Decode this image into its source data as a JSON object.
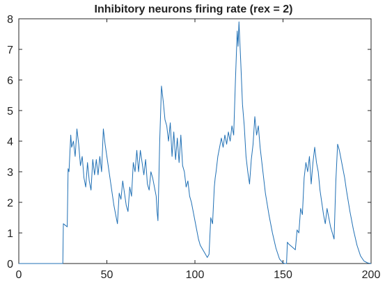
{
  "chart_data": {
    "type": "line",
    "title": "Inhibitory neurons firing rate (rex = 2)",
    "xlabel": "",
    "ylabel": "",
    "xlim": [
      0,
      200
    ],
    "ylim": [
      0,
      8
    ],
    "xticks": [
      0,
      50,
      100,
      150,
      200
    ],
    "yticks": [
      0,
      1,
      2,
      3,
      4,
      5,
      6,
      7,
      8
    ],
    "grid": false,
    "legend": "none",
    "series": [
      {
        "color": "#1f6fb4",
        "x": [
          0,
          25,
          25.3,
          27.5,
          28,
          28.5,
          29.5,
          30,
          31,
          32,
          33,
          34,
          35,
          36,
          37,
          38,
          39,
          40,
          41,
          42,
          43,
          44,
          45,
          46,
          47,
          48,
          49,
          50,
          51,
          52,
          53,
          54,
          55,
          56,
          57,
          58,
          59,
          60,
          61,
          62,
          63,
          64,
          65,
          66,
          67,
          68,
          69,
          70,
          71,
          72,
          73,
          74,
          75,
          76,
          77,
          78,
          78.5,
          79,
          80,
          81,
          82,
          83,
          84,
          85,
          86,
          87,
          88,
          89,
          90,
          91,
          92,
          93,
          94,
          95,
          96,
          97,
          98,
          99,
          100,
          101,
          102,
          103,
          104,
          105,
          106,
          107,
          108,
          109,
          110,
          111,
          111.5,
          112,
          113,
          114,
          115,
          116,
          117,
          118,
          119,
          120,
          121,
          122,
          123,
          124,
          124.5,
          125,
          126,
          127,
          128,
          129,
          130,
          131,
          132,
          133,
          134,
          135,
          136,
          137,
          138,
          139,
          140,
          142,
          144,
          146,
          148,
          150,
          151,
          152,
          152.5,
          153,
          154,
          155,
          156,
          157,
          158,
          159,
          160,
          161,
          162,
          163,
          164,
          165,
          166,
          167,
          168,
          169,
          170,
          171,
          172,
          173,
          174,
          175,
          176,
          177,
          178,
          179,
          180,
          181,
          182,
          183,
          184,
          185,
          186,
          188,
          190,
          192,
          194,
          196,
          198,
          200
        ],
        "y": [
          0,
          0,
          1.3,
          1.2,
          3.1,
          3.0,
          4.2,
          3.8,
          4.0,
          3.5,
          4.4,
          3.9,
          3.2,
          3.5,
          2.8,
          2.5,
          3.3,
          2.7,
          2.4,
          3.4,
          2.9,
          3.4,
          2.9,
          3.5,
          3.0,
          4.4,
          3.9,
          3.5,
          3.1,
          2.7,
          2.3,
          1.9,
          1.6,
          1.3,
          2.3,
          2.1,
          2.7,
          2.3,
          1.9,
          1.7,
          2.5,
          2.2,
          3.3,
          3.0,
          3.7,
          3.0,
          3.7,
          3.3,
          2.9,
          3.4,
          2.6,
          2.4,
          3.0,
          2.8,
          2.5,
          2.2,
          1.7,
          1.4,
          4.0,
          5.8,
          5.3,
          4.7,
          4.5,
          4.0,
          4.6,
          3.5,
          4.3,
          3.4,
          4.1,
          3.3,
          4.2,
          3.2,
          3.0,
          2.5,
          2.7,
          2.2,
          2.0,
          1.7,
          1.4,
          1.1,
          0.8,
          0.6,
          0.5,
          0.4,
          0.3,
          0.2,
          0.3,
          1.5,
          1.3,
          2.5,
          2.8,
          3.0,
          3.5,
          3.8,
          4.1,
          3.8,
          4.2,
          3.9,
          4.3,
          4.0,
          4.5,
          4.2,
          6.0,
          7.6,
          7.1,
          7.9,
          6.6,
          5.2,
          4.5,
          3.5,
          3.0,
          2.6,
          3.4,
          3.9,
          4.8,
          4.2,
          4.5,
          3.8,
          3.3,
          2.8,
          2.3,
          1.6,
          1.0,
          0.5,
          0.15,
          0.02,
          0,
          0,
          0.7,
          0.65,
          0.6,
          0.55,
          0.5,
          0.45,
          1.1,
          1.0,
          1.8,
          1.6,
          2.8,
          3.3,
          3.0,
          3.5,
          2.6,
          3.3,
          3.8,
          3.3,
          3.0,
          2.4,
          2.0,
          1.6,
          1.3,
          1.8,
          1.5,
          1.2,
          1.0,
          0.8,
          2.7,
          3.9,
          3.7,
          3.4,
          3.1,
          2.8,
          2.4,
          1.7,
          1.1,
          0.6,
          0.25,
          0.08,
          0.02,
          0
        ]
      }
    ]
  }
}
